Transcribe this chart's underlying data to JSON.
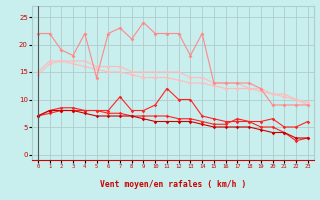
{
  "x": [
    0,
    1,
    2,
    3,
    4,
    5,
    6,
    7,
    8,
    9,
    10,
    11,
    12,
    13,
    14,
    15,
    16,
    17,
    18,
    19,
    20,
    21,
    22,
    23
  ],
  "line_pink": [
    22,
    22,
    19,
    18,
    22,
    14,
    22,
    23,
    21,
    24,
    22,
    22,
    22,
    18,
    22,
    13,
    13,
    13,
    13,
    12,
    9,
    9,
    9,
    9
  ],
  "line_ltpink1": [
    15,
    17,
    17,
    17,
    17,
    16,
    16,
    16,
    15,
    15,
    15,
    15,
    15,
    14,
    14,
    13,
    13,
    13,
    12,
    12,
    11,
    11,
    10,
    9
  ],
  "line_ltpink2": [
    14.5,
    16.5,
    17,
    16.5,
    16,
    15.5,
    15,
    15,
    14.5,
    14,
    14,
    14,
    13.5,
    13,
    13,
    12.5,
    12,
    12,
    12,
    11.5,
    11,
    10.5,
    10,
    9.5
  ],
  "line_red1": [
    7,
    8,
    8.5,
    8.5,
    8,
    8,
    8,
    10.5,
    8,
    8,
    9,
    12,
    10,
    10,
    7,
    6.5,
    6,
    6,
    6,
    6,
    6.5,
    5,
    5,
    6
  ],
  "line_red2": [
    7,
    7.5,
    8,
    8,
    8,
    8,
    7.5,
    7.5,
    7,
    7,
    7,
    7,
    6.5,
    6.5,
    6,
    5.5,
    5.5,
    6.5,
    6,
    5,
    5,
    4,
    2.5,
    3
  ],
  "line_darkred": [
    7,
    8,
    8,
    8,
    7.5,
    7,
    7,
    7,
    7,
    6.5,
    6,
    6,
    6,
    6,
    5.5,
    5,
    5,
    5,
    5,
    4.5,
    4,
    4,
    3,
    3
  ],
  "bg_color": "#c8eeee",
  "grid_color": "#b0cccc",
  "color_lt_pink": "#ffbbbb",
  "color_pink": "#ff8888",
  "color_red": "#ff2222",
  "color_dark_red": "#cc0000",
  "xlabel": "Vent moyen/en rafales ( km/h )",
  "wind_syms": [
    "↙",
    "↗",
    "→",
    "↗",
    "↑",
    "→",
    "→",
    "↗",
    "↑",
    "↗",
    "↗",
    "↗",
    "↑",
    "→",
    "↗",
    "↑",
    "↑",
    "↙",
    "↖",
    "↑",
    "↖",
    "↖",
    "↗",
    "↖"
  ],
  "xlim": [
    -0.5,
    23.5
  ],
  "ylim": [
    -1,
    27
  ],
  "yticks": [
    0,
    5,
    10,
    15,
    20,
    25
  ]
}
